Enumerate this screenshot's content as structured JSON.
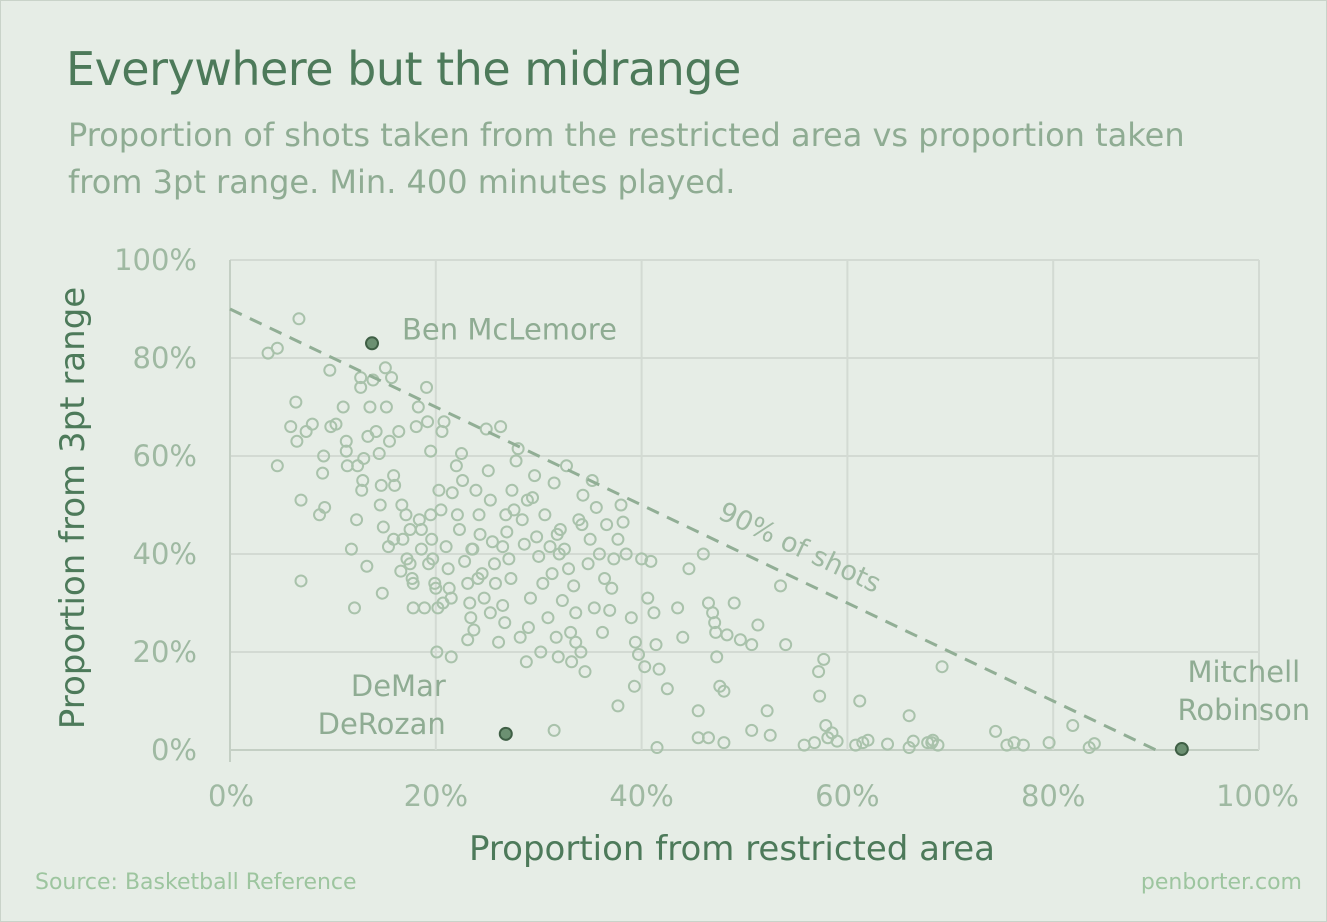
{
  "header": {
    "title": "Everywhere but the midrange",
    "subtitle": "Proportion of shots taken from the restricted area vs proportion taken from 3pt range. Min. 400 minutes played."
  },
  "footer": {
    "source": "Source: Basketball Reference",
    "credit": "penborter.com"
  },
  "colors": {
    "background": "#e6ede6",
    "grid": "#d3dad3",
    "point_stroke": "#a9c2ab",
    "highlight_fill": "#6c9072",
    "reference_line": "#91ae95"
  },
  "chart_data": {
    "type": "scatter",
    "xlabel": "Proportion from restricted area",
    "ylabel": "Proportion from 3pt range",
    "xlim": [
      0,
      100
    ],
    "ylim": [
      0,
      100
    ],
    "x_ticks": [
      "0%",
      "20%",
      "40%",
      "60%",
      "80%",
      "100%"
    ],
    "y_ticks": [
      "0%",
      "20%",
      "40%",
      "60%",
      "80%",
      "100%"
    ],
    "grid": true,
    "reference_line": {
      "label": "90% of shots",
      "from": [
        0,
        90
      ],
      "to": [
        90,
        0
      ]
    },
    "highlighted": [
      {
        "name": "Ben McLemore",
        "x": 13.8,
        "y": 83.0
      },
      {
        "name": "DeMar DeRozan",
        "x": 26.8,
        "y": 3.3
      },
      {
        "name": "Mitchell Robinson",
        "x": 92.5,
        "y": 0.2
      }
    ],
    "points": [
      [
        3.7,
        81
      ],
      [
        4.6,
        82
      ],
      [
        6.7,
        88
      ],
      [
        6.4,
        71
      ],
      [
        5.9,
        66
      ],
      [
        6.5,
        63
      ],
      [
        7.4,
        65
      ],
      [
        8,
        66.5
      ],
      [
        4.6,
        58
      ],
      [
        6.9,
        51
      ],
      [
        6.9,
        34.5
      ],
      [
        8.7,
        48
      ],
      [
        9,
        56.5
      ],
      [
        9.1,
        60
      ],
      [
        9.2,
        49.5
      ],
      [
        9.7,
        77.5
      ],
      [
        9.8,
        66
      ],
      [
        10.3,
        66.5
      ],
      [
        11,
        70
      ],
      [
        11.3,
        63
      ],
      [
        11.3,
        61
      ],
      [
        11.4,
        58
      ],
      [
        11.8,
        41
      ],
      [
        12.1,
        29
      ],
      [
        12.3,
        47
      ],
      [
        12.4,
        58
      ],
      [
        12.7,
        74
      ],
      [
        12.7,
        76
      ],
      [
        12.8,
        53
      ],
      [
        12.9,
        55
      ],
      [
        13,
        59.5
      ],
      [
        13.3,
        37.5
      ],
      [
        13.4,
        64
      ],
      [
        13.6,
        70
      ],
      [
        13.9,
        75.5
      ],
      [
        14.2,
        65
      ],
      [
        14.5,
        60.5
      ],
      [
        14.7,
        54
      ],
      [
        14.6,
        50
      ],
      [
        14.9,
        45.5
      ],
      [
        15.1,
        78
      ],
      [
        15.2,
        70
      ],
      [
        15.4,
        41.5
      ],
      [
        15.7,
        76
      ],
      [
        15.5,
        63
      ],
      [
        15.9,
        56
      ],
      [
        16,
        54
      ],
      [
        16.4,
        65
      ],
      [
        16.7,
        50
      ],
      [
        16.8,
        43
      ],
      [
        17.1,
        48
      ],
      [
        17.2,
        39
      ],
      [
        17.5,
        38
      ],
      [
        17.5,
        45
      ],
      [
        17.7,
        35
      ],
      [
        17.8,
        29
      ],
      [
        18.1,
        66
      ],
      [
        18.3,
        70
      ],
      [
        18.4,
        47
      ],
      [
        18.6,
        45
      ],
      [
        18.6,
        41
      ],
      [
        18.9,
        29
      ],
      [
        19.1,
        74
      ],
      [
        19.2,
        67
      ],
      [
        19.5,
        61
      ],
      [
        19.5,
        48
      ],
      [
        19.6,
        43
      ],
      [
        19.7,
        39
      ],
      [
        19.9,
        34
      ],
      [
        20,
        33
      ],
      [
        20.2,
        29
      ],
      [
        20.3,
        53
      ],
      [
        20.5,
        49
      ],
      [
        20.6,
        65
      ],
      [
        20.8,
        67
      ],
      [
        21,
        41.5
      ],
      [
        21.2,
        37
      ],
      [
        21.3,
        33
      ],
      [
        21.5,
        31
      ],
      [
        21.6,
        52.5
      ],
      [
        22,
        58
      ],
      [
        22.1,
        48
      ],
      [
        22.3,
        45
      ],
      [
        22.5,
        60.5
      ],
      [
        22.6,
        55
      ],
      [
        22.8,
        38.5
      ],
      [
        23.1,
        34
      ],
      [
        23.3,
        30
      ],
      [
        23.4,
        27
      ],
      [
        23.5,
        41
      ],
      [
        23.7,
        24.5
      ],
      [
        23.9,
        53
      ],
      [
        24.2,
        48
      ],
      [
        24.3,
        44
      ],
      [
        24.5,
        36
      ],
      [
        24.7,
        31
      ],
      [
        24.9,
        65.5
      ],
      [
        25.1,
        57
      ],
      [
        25.3,
        51
      ],
      [
        25.5,
        42.5
      ],
      [
        25.7,
        38
      ],
      [
        25.8,
        34
      ],
      [
        26.1,
        22
      ],
      [
        26.3,
        66
      ],
      [
        26.5,
        29.5
      ],
      [
        26.7,
        26
      ],
      [
        26.9,
        44.5
      ],
      [
        27.1,
        39
      ],
      [
        27.3,
        35
      ],
      [
        27.4,
        53
      ],
      [
        27.6,
        49
      ],
      [
        27.8,
        59
      ],
      [
        28,
        61.5
      ],
      [
        28.2,
        23
      ],
      [
        28.4,
        47
      ],
      [
        28.6,
        42
      ],
      [
        28.8,
        18
      ],
      [
        29,
        25
      ],
      [
        29.2,
        31
      ],
      [
        29.4,
        51.5
      ],
      [
        29.6,
        56
      ],
      [
        29.8,
        43.5
      ],
      [
        30,
        39.5
      ],
      [
        30.2,
        20
      ],
      [
        30.4,
        34
      ],
      [
        30.6,
        48
      ],
      [
        30.9,
        27
      ],
      [
        31.1,
        41.5
      ],
      [
        31.3,
        36
      ],
      [
        31.5,
        54.5
      ],
      [
        31.7,
        23
      ],
      [
        31.9,
        19
      ],
      [
        32.1,
        45
      ],
      [
        32.3,
        30.5
      ],
      [
        32.5,
        41
      ],
      [
        32.7,
        58
      ],
      [
        32.9,
        37
      ],
      [
        33.1,
        24
      ],
      [
        33.2,
        18
      ],
      [
        33.4,
        33.5
      ],
      [
        33.6,
        28
      ],
      [
        33.9,
        47
      ],
      [
        34.1,
        20
      ],
      [
        34.3,
        52
      ],
      [
        34.5,
        16
      ],
      [
        34.8,
        38
      ],
      [
        35,
        43
      ],
      [
        35.2,
        55
      ],
      [
        35.4,
        29
      ],
      [
        35.6,
        49.5
      ],
      [
        35.9,
        40
      ],
      [
        36.2,
        24
      ],
      [
        36.4,
        35
      ],
      [
        36.6,
        46
      ],
      [
        36.9,
        28.5
      ],
      [
        37.1,
        33
      ],
      [
        37.3,
        39
      ],
      [
        37.7,
        43
      ],
      [
        38,
        50
      ],
      [
        38.2,
        46.5
      ],
      [
        38.5,
        40
      ],
      [
        39,
        27
      ],
      [
        39.4,
        22
      ],
      [
        39.7,
        19.5
      ],
      [
        40,
        39
      ],
      [
        40.3,
        17
      ],
      [
        40.6,
        31
      ],
      [
        40.9,
        38.5
      ],
      [
        41.2,
        28
      ],
      [
        41.4,
        21.5
      ],
      [
        41.7,
        16.5
      ],
      [
        42.5,
        12.5
      ],
      [
        43.5,
        29
      ],
      [
        44,
        23
      ],
      [
        44.6,
        37
      ],
      [
        45.5,
        8
      ],
      [
        46,
        40
      ],
      [
        46.5,
        30
      ],
      [
        46.9,
        28
      ],
      [
        47.1,
        26
      ],
      [
        47.2,
        24
      ],
      [
        47.3,
        19
      ],
      [
        47.6,
        13
      ],
      [
        48,
        12
      ],
      [
        48.3,
        23.5
      ],
      [
        49,
        30
      ],
      [
        49.6,
        22.5
      ],
      [
        50.7,
        21.5
      ],
      [
        51.3,
        25.5
      ],
      [
        52.2,
        8
      ],
      [
        52.5,
        3
      ],
      [
        53.5,
        33.5
      ],
      [
        54,
        21.5
      ],
      [
        55.8,
        1
      ],
      [
        56.8,
        1.5
      ],
      [
        57.2,
        16
      ],
      [
        57.3,
        11
      ],
      [
        57.7,
        18.5
      ],
      [
        57.9,
        5
      ],
      [
        58.1,
        2.5
      ],
      [
        58.5,
        3.5
      ],
      [
        59,
        1.8
      ],
      [
        60.8,
        1
      ],
      [
        61.2,
        10
      ],
      [
        61.5,
        1.5
      ],
      [
        62,
        2
      ],
      [
        63.9,
        1.2
      ],
      [
        66,
        7
      ],
      [
        66,
        0.5
      ],
      [
        66.4,
        1.8
      ],
      [
        67.8,
        1.5
      ],
      [
        68.2,
        1.5
      ],
      [
        68.3,
        2
      ],
      [
        68.8,
        1
      ],
      [
        69.2,
        17
      ],
      [
        74.4,
        3.8
      ],
      [
        75.5,
        1
      ],
      [
        76.2,
        1.5
      ],
      [
        77.1,
        1
      ],
      [
        79.6,
        1.5
      ],
      [
        81.9,
        5
      ],
      [
        83.5,
        0.5
      ],
      [
        84,
        1.3
      ],
      [
        45.5,
        2.5
      ],
      [
        48,
        1.5
      ],
      [
        46.5,
        2.5
      ],
      [
        50.7,
        4
      ],
      [
        41.5,
        0.5
      ],
      [
        31.5,
        4
      ],
      [
        33.6,
        22
      ],
      [
        37.7,
        9
      ],
      [
        39.3,
        13
      ],
      [
        21.5,
        19
      ],
      [
        20.1,
        20
      ],
      [
        23.6,
        41
      ],
      [
        26.8,
        48
      ],
      [
        28.9,
        51
      ],
      [
        31.8,
        44
      ],
      [
        32,
        40
      ],
      [
        34.2,
        46
      ],
      [
        26.5,
        41.5
      ],
      [
        24.1,
        35
      ],
      [
        25.3,
        28
      ],
      [
        23.1,
        22.5
      ],
      [
        20.7,
        30
      ],
      [
        19.3,
        38
      ],
      [
        17.8,
        34
      ],
      [
        15.9,
        43
      ],
      [
        14.8,
        32
      ],
      [
        16.6,
        36.5
      ]
    ]
  }
}
